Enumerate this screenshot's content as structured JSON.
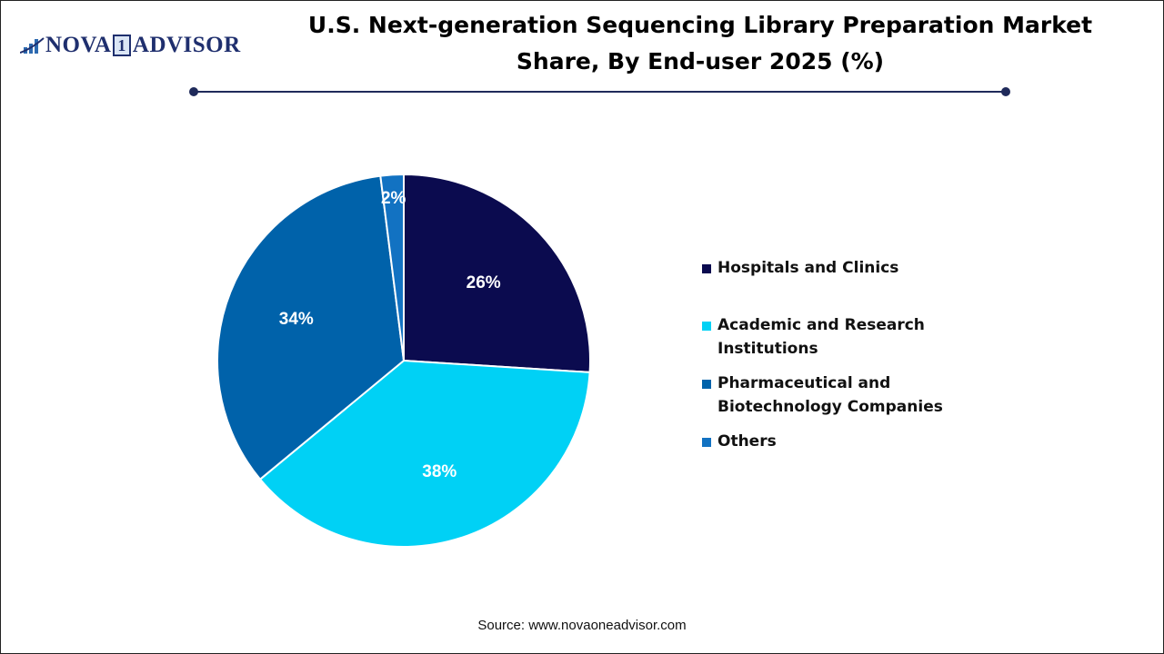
{
  "logo": {
    "text_left": "NOVA",
    "text_one": "1",
    "text_right": "ADVISOR"
  },
  "title": "U.S. Next-generation Sequencing Library Preparation Market Share, By End-user 2025 (%)",
  "source": "Source: www.novaoneadvisor.com",
  "chart_data": {
    "type": "pie",
    "title": "U.S. Next-generation Sequencing Library Preparation Market Share, By End-user 2025 (%)",
    "legend_position": "right",
    "start": "top, clockwise",
    "slices": [
      {
        "label": "Hospitals and Clinics",
        "value": 26,
        "data_label": "26%",
        "color": "#0b0b4f"
      },
      {
        "label": "Academic and Research Institutions",
        "value": 38,
        "data_label": "38%",
        "color": "#00d1f5"
      },
      {
        "label": "Pharmaceutical and Biotechnology Companies",
        "value": 34,
        "data_label": "34%",
        "color": "#0062aa"
      },
      {
        "label": "Others",
        "value": 2,
        "data_label": "2%",
        "color": "#1272c2"
      }
    ]
  }
}
